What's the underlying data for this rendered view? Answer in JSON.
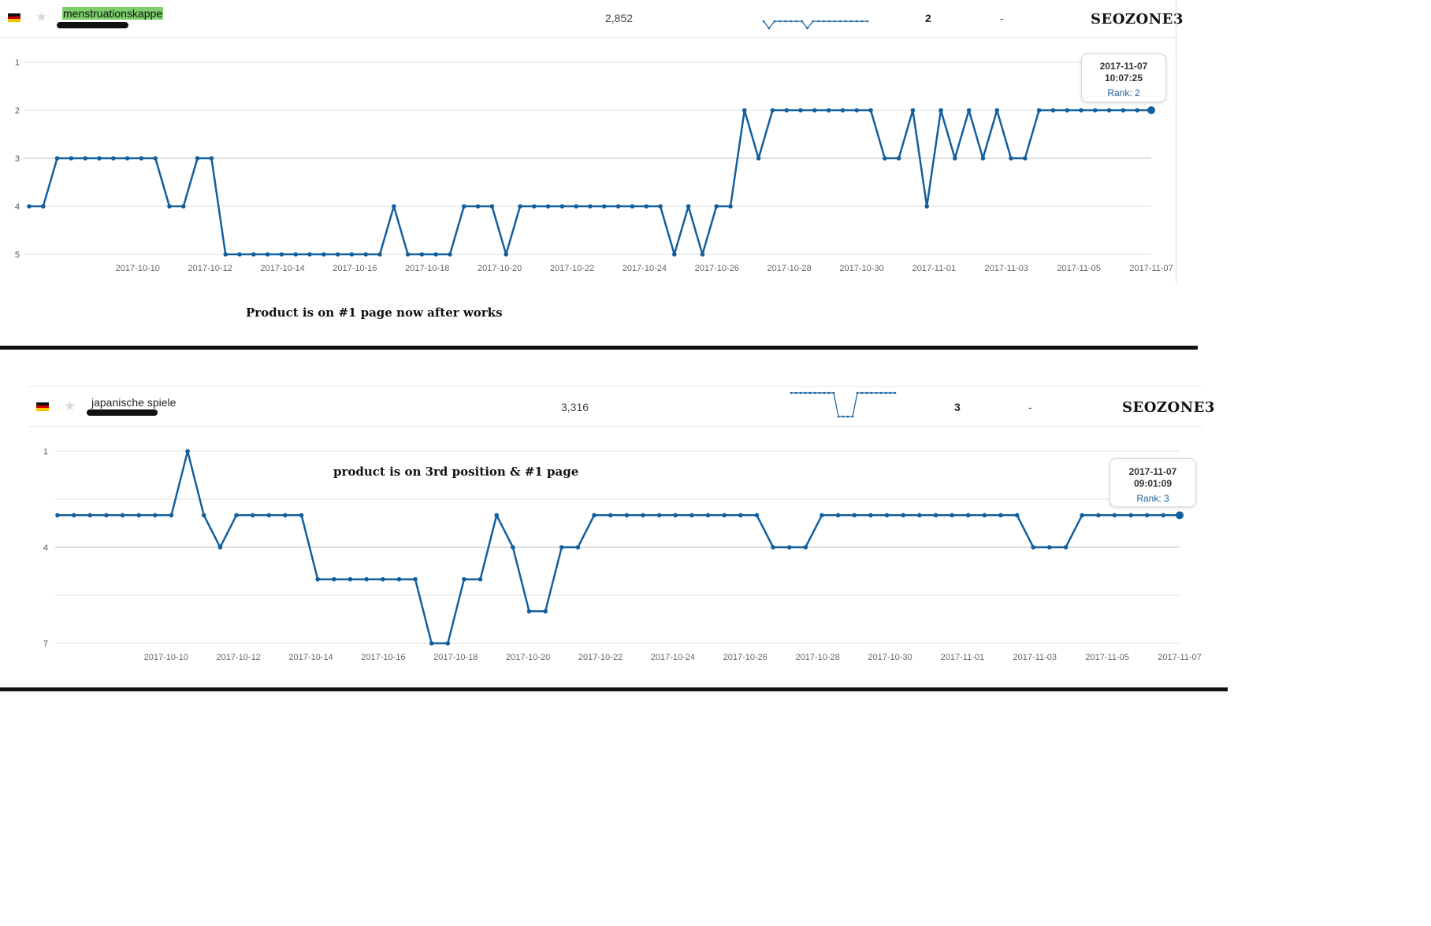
{
  "panel1": {
    "keyword": "menstruationskappe",
    "search_volume": "2,852",
    "rank": "2",
    "change": "-",
    "brand": "SEOZONE3",
    "annotation": "Product is on #1 page now after works",
    "tooltip": {
      "date": "2017-11-07",
      "time": "10:07:25",
      "rank_label": "Rank: 2"
    },
    "sparkline": [
      4,
      5,
      4,
      4,
      4,
      4,
      4,
      4,
      5,
      4,
      4,
      4,
      4,
      4,
      4,
      4,
      4,
      4,
      4,
      4
    ]
  },
  "panel2": {
    "keyword": "japanische spiele",
    "search_volume": "3,316",
    "rank": "3",
    "change": "-",
    "brand": "SEOZONE3",
    "annotation": "product is on 3rd position & #1 page",
    "tooltip": {
      "date": "2017-11-07",
      "time": "09:01:09",
      "rank_label": "Rank: 3"
    },
    "sparkline": [
      3,
      3,
      3,
      3,
      3,
      3,
      3,
      3,
      3,
      3,
      5,
      5,
      5,
      5,
      3,
      3,
      3,
      3,
      3,
      3,
      3,
      3,
      3
    ]
  },
  "colors": {
    "line": "#135f9d",
    "grid": "#e0e0e0",
    "grid_dark": "#bdbdbd",
    "highlight": "#7ccf6a"
  },
  "chart_data": [
    {
      "type": "line",
      "ylabel": "",
      "xlabel": "",
      "y_reversed": true,
      "ylim": [
        1,
        5
      ],
      "yticks": [
        1,
        2,
        3,
        4,
        5
      ],
      "x_start": "2017-10-07",
      "x_end": "2017-11-07",
      "xtick_labels": [
        "2017-10-10",
        "2017-10-12",
        "2017-10-14",
        "2017-10-16",
        "2017-10-18",
        "2017-10-20",
        "2017-10-22",
        "2017-10-24",
        "2017-10-26",
        "2017-10-28",
        "2017-10-30",
        "2017-11-01",
        "2017-11-03",
        "2017-11-05",
        "2017-11-07"
      ],
      "values": [
        4,
        4,
        3,
        3,
        3,
        3,
        3,
        3,
        3,
        3,
        4,
        4,
        3,
        3,
        5,
        5,
        5,
        5,
        5,
        5,
        5,
        5,
        5,
        5,
        5,
        5,
        4,
        5,
        5,
        5,
        5,
        4,
        4,
        4,
        5,
        4,
        4,
        4,
        4,
        4,
        4,
        4,
        4,
        4,
        4,
        4,
        5,
        4,
        5,
        4,
        4,
        2,
        3,
        2,
        2,
        2,
        2,
        2,
        2,
        2,
        2,
        3,
        3,
        2,
        4,
        2,
        3,
        2,
        3,
        2,
        3,
        3,
        2,
        2,
        2,
        2,
        2,
        2,
        2,
        2,
        2
      ]
    },
    {
      "type": "line",
      "ylabel": "",
      "xlabel": "",
      "y_reversed": true,
      "ylim": [
        1,
        7
      ],
      "yticks": [
        1,
        4,
        7
      ],
      "x_start": "2017-10-07",
      "x_end": "2017-11-07",
      "xtick_labels": [
        "2017-10-10",
        "2017-10-12",
        "2017-10-14",
        "2017-10-16",
        "2017-10-18",
        "2017-10-20",
        "2017-10-22",
        "2017-10-24",
        "2017-10-26",
        "2017-10-28",
        "2017-10-30",
        "2017-11-01",
        "2017-11-03",
        "2017-11-05",
        "2017-11-07"
      ],
      "values": [
        3,
        3,
        3,
        3,
        3,
        3,
        3,
        3,
        1,
        3,
        4,
        3,
        3,
        3,
        3,
        3,
        5,
        5,
        5,
        5,
        5,
        5,
        5,
        7,
        7,
        5,
        5,
        3,
        4,
        6,
        6,
        4,
        4,
        3,
        3,
        3,
        3,
        3,
        3,
        3,
        3,
        3,
        3,
        3,
        4,
        4,
        4,
        3,
        3,
        3,
        3,
        3,
        3,
        3,
        3,
        3,
        3,
        3,
        3,
        3,
        4,
        4,
        4,
        3,
        3,
        3,
        3,
        3,
        3,
        3
      ]
    }
  ]
}
